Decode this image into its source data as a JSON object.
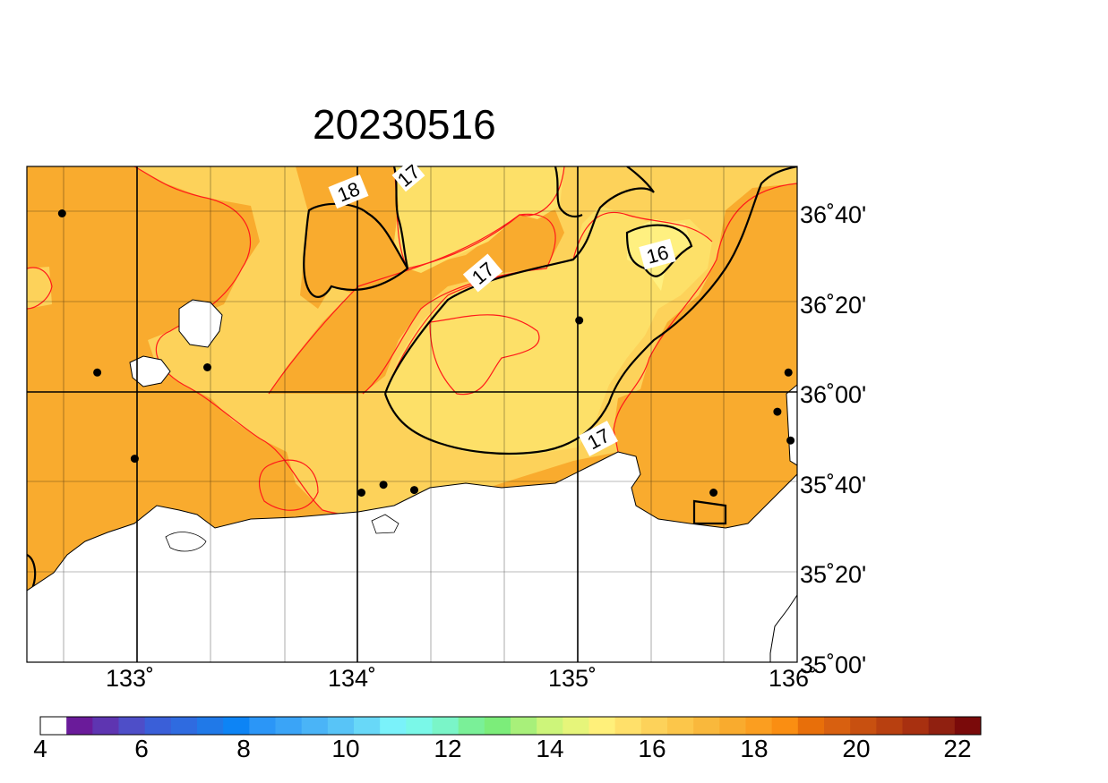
{
  "title": "20230516",
  "map": {
    "lon_range": [
      132.5,
      136.0
    ],
    "lat_range": [
      35.0,
      36.9
    ],
    "lon_ticks": [
      "133˚",
      "134˚",
      "135˚",
      "136˚"
    ],
    "lat_ticks": [
      "36˚40'",
      "36˚20'",
      "36˚00'",
      "35˚40'",
      "35˚20'",
      "35˚00'"
    ],
    "contour_labels": [
      "18",
      "17",
      "17",
      "17",
      "16"
    ],
    "colors": {
      "warm_18_19": "#f9ab2e",
      "mild_17_18": "#fdd25a",
      "cool_16_17": "#fde068",
      "cold_16": "#fff080",
      "land": "#ffffff",
      "contour_fine": "#ff1a1a",
      "contour_major": "#000000"
    }
  },
  "colorbar": {
    "tick_labels": [
      "4",
      "6",
      "8",
      "10",
      "12",
      "14",
      "16",
      "18",
      "20",
      "22"
    ],
    "colors": [
      "#ffffff",
      "#6a1b9a",
      "#5e35b1",
      "#4e4ec8",
      "#3a5fd8",
      "#2f6be0",
      "#2079e8",
      "#0d84f5",
      "#2b96f7",
      "#3aa4f7",
      "#4ab4f7",
      "#58c4f7",
      "#68d8f8",
      "#7af2fa",
      "#7af8e8",
      "#7af5c8",
      "#7af098",
      "#7ced7a",
      "#a8f07a",
      "#cdf57a",
      "#e6f57a",
      "#fff07a",
      "#ffe06a",
      "#fdd25a",
      "#fcc64a",
      "#f9b83c",
      "#f9ab2e",
      "#fb9e20",
      "#fa8e12",
      "#e86f0a",
      "#d86010",
      "#c85010",
      "#b84010",
      "#a83010",
      "#902010",
      "#7a0a0a"
    ]
  },
  "stations": [
    {
      "lon": 132.66,
      "lat": 36.72
    },
    {
      "lon": 132.82,
      "lat": 36.11
    },
    {
      "lon": 133.32,
      "lat": 36.13
    },
    {
      "lon": 132.99,
      "lat": 35.78
    },
    {
      "lon": 134.02,
      "lat": 35.65
    },
    {
      "lon": 134.12,
      "lat": 35.68
    },
    {
      "lon": 134.26,
      "lat": 35.66
    },
    {
      "lon": 135.01,
      "lat": 36.31
    },
    {
      "lon": 135.62,
      "lat": 35.65
    },
    {
      "lon": 135.96,
      "lat": 36.11
    },
    {
      "lon": 135.91,
      "lat": 35.96
    },
    {
      "lon": 135.97,
      "lat": 35.85
    }
  ]
}
